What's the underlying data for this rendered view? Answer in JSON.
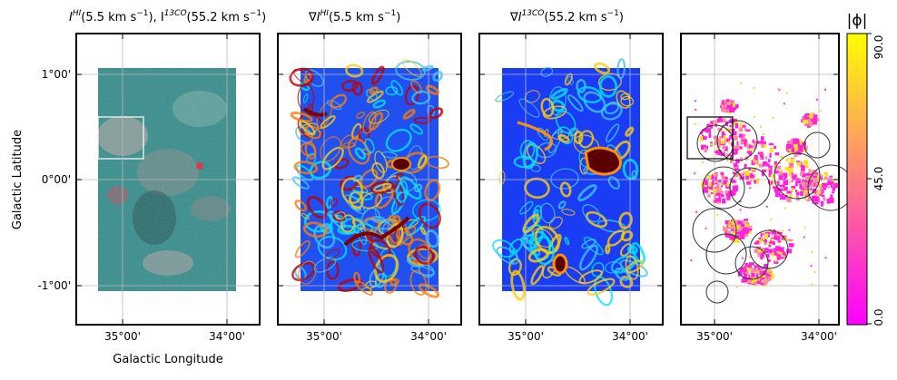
{
  "figure": {
    "xlabel": "Galactic Longitude",
    "ylabel": "Galactic Latitude",
    "x_ticks": [
      "35°00'",
      "34°00'"
    ],
    "y_ticks": [
      "1°00'",
      "0°00'",
      "-1°00'"
    ]
  },
  "panels": [
    {
      "title_main": "I",
      "title_sup1": "HI",
      "title_mid": "(5.5 km s",
      "title_exp1": "−1",
      "title_mid2": "), I",
      "title_sup2": "13CO",
      "title_end": "(55.2 km s",
      "title_exp2": "−1",
      "title_close": ")"
    },
    {
      "title_main": "∇I",
      "title_sup1": "HI",
      "title_mid": "(5.5 km s",
      "title_exp1": "−1",
      "title_close": ")"
    },
    {
      "title_main": "∇I",
      "title_sup1": "13CO",
      "title_mid": "(55.2 km s",
      "title_exp1": "−1",
      "title_close": ")"
    },
    {}
  ],
  "colorbar": {
    "label": "|ϕ|",
    "ticks": [
      "0.0",
      "45.0",
      "90.0"
    ],
    "cmap": [
      "#ff00ff",
      "#ffff00"
    ]
  },
  "chart_data": [
    {
      "type": "heatmap",
      "x_label": "Galactic Longitude",
      "y_label": "Galactic Latitude",
      "x_ticks": [
        "35°00'",
        "34°00'"
      ],
      "y_ticks": [
        "1°00'",
        "0°00'",
        "-1°00'"
      ],
      "colors": [
        "#2a8a8a",
        "#d04050"
      ]
    },
    {
      "type": "heatmap",
      "x_ticks": [
        "35°00'",
        "34°00'"
      ],
      "colors": [
        "#0020ff",
        "#00ffff",
        "#ff8000",
        "#6a0000"
      ]
    },
    {
      "type": "heatmap",
      "x_ticks": [
        "35°00'",
        "34°00'"
      ],
      "colors": [
        "#0020ff",
        "#00ffff",
        "#ff8000",
        "#6a0000"
      ]
    },
    {
      "type": "heatmap",
      "x_ticks": [
        "35°00'",
        "34°00'"
      ],
      "value_range": [
        0,
        90
      ],
      "colors": [
        "#ff00ff",
        "#ffff00"
      ]
    }
  ]
}
